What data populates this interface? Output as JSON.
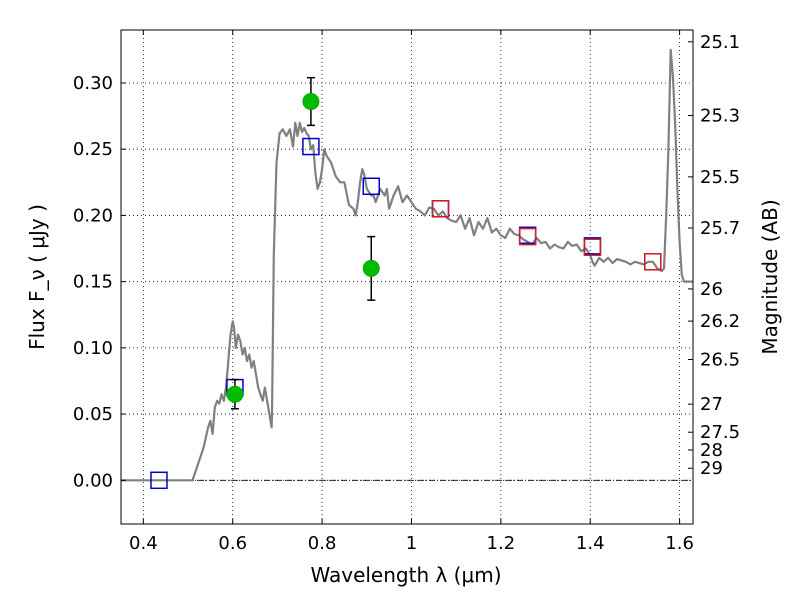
{
  "chart_data": {
    "type": "scatter",
    "xlabel": "Wavelength  λ (μm)",
    "ylabel": "Flux  F_ν  ( μJy )",
    "y2label": "Magnitude (AB)",
    "xlim": [
      0.35,
      1.63
    ],
    "ylim": [
      -0.033,
      0.34
    ],
    "x_ticks": [
      0.4,
      0.6,
      0.8,
      1.0,
      1.2,
      1.4,
      1.6
    ],
    "x_tick_labels": [
      "0.4",
      "0.6",
      "0.8",
      "1",
      "1.2",
      "1.4",
      "1.6"
    ],
    "y_ticks": [
      0.0,
      0.05,
      0.1,
      0.15,
      0.2,
      0.25,
      0.3
    ],
    "y_tick_labels": [
      "0.00",
      "0.05",
      "0.10",
      "0.15",
      "0.20",
      "0.25",
      "0.30"
    ],
    "mag_ticks": [
      {
        "label": "25.1",
        "flux": 0.3311
      },
      {
        "label": "25.3",
        "flux": 0.2754
      },
      {
        "label": "25.5",
        "flux": 0.2291
      },
      {
        "label": "25.7",
        "flux": 0.1905
      },
      {
        "label": "26",
        "flux": 0.1445
      },
      {
        "label": "26.2",
        "flux": 0.1202
      },
      {
        "label": "26.5",
        "flux": 0.0912
      },
      {
        "label": "27",
        "flux": 0.0575
      },
      {
        "label": "27.5",
        "flux": 0.0363
      },
      {
        "label": "28",
        "flux": 0.0229
      },
      {
        "label": "29",
        "flux": 0.0091
      }
    ],
    "grid": true,
    "legend": "none",
    "zero_line": true,
    "series": [
      {
        "kind": "line",
        "color": "#808080",
        "x": [
          0.35,
          0.51,
          0.52,
          0.535,
          0.545,
          0.55,
          0.555,
          0.56,
          0.565,
          0.57,
          0.575,
          0.58,
          0.585,
          0.59,
          0.595,
          0.6,
          0.603,
          0.607,
          0.612,
          0.617,
          0.622,
          0.627,
          0.632,
          0.637,
          0.642,
          0.647,
          0.652,
          0.657,
          0.662,
          0.667,
          0.672,
          0.677,
          0.682,
          0.687,
          0.688,
          0.692,
          0.698,
          0.705,
          0.712,
          0.72,
          0.728,
          0.735,
          0.74,
          0.745,
          0.75,
          0.755,
          0.76,
          0.765,
          0.77,
          0.775,
          0.78,
          0.785,
          0.79,
          0.795,
          0.8,
          0.805,
          0.81,
          0.82,
          0.83,
          0.84,
          0.85,
          0.86,
          0.87,
          0.875,
          0.88,
          0.885,
          0.89,
          0.895,
          0.9,
          0.91,
          0.915,
          0.92,
          0.93,
          0.94,
          0.945,
          0.95,
          0.96,
          0.97,
          0.98,
          0.99,
          1.0,
          1.01,
          1.02,
          1.03,
          1.04,
          1.05,
          1.06,
          1.07,
          1.08,
          1.09,
          1.1,
          1.11,
          1.12,
          1.13,
          1.14,
          1.15,
          1.16,
          1.17,
          1.18,
          1.19,
          1.2,
          1.21,
          1.22,
          1.23,
          1.24,
          1.25,
          1.26,
          1.27,
          1.28,
          1.29,
          1.3,
          1.31,
          1.32,
          1.33,
          1.34,
          1.35,
          1.36,
          1.37,
          1.38,
          1.39,
          1.4,
          1.405,
          1.41,
          1.42,
          1.43,
          1.44,
          1.45,
          1.46,
          1.47,
          1.48,
          1.49,
          1.5,
          1.51,
          1.52,
          1.53,
          1.54,
          1.55,
          1.56,
          1.565,
          1.57,
          1.575,
          1.58,
          1.585,
          1.59,
          1.595,
          1.6,
          1.605,
          1.61,
          1.62,
          1.63
        ],
        "y": [
          0.0,
          0.0,
          0.01,
          0.025,
          0.04,
          0.045,
          0.035,
          0.055,
          0.06,
          0.058,
          0.065,
          0.06,
          0.07,
          0.09,
          0.11,
          0.12,
          0.115,
          0.1,
          0.11,
          0.105,
          0.095,
          0.1,
          0.09,
          0.095,
          0.085,
          0.09,
          0.08,
          0.07,
          0.065,
          0.06,
          0.07,
          0.06,
          0.05,
          0.04,
          0.05,
          0.17,
          0.24,
          0.262,
          0.265,
          0.26,
          0.265,
          0.252,
          0.27,
          0.26,
          0.27,
          0.263,
          0.266,
          0.262,
          0.26,
          0.25,
          0.253,
          0.232,
          0.22,
          0.225,
          0.235,
          0.25,
          0.245,
          0.24,
          0.23,
          0.225,
          0.225,
          0.208,
          0.205,
          0.2,
          0.21,
          0.225,
          0.235,
          0.23,
          0.22,
          0.215,
          0.215,
          0.21,
          0.22,
          0.215,
          0.22,
          0.205,
          0.215,
          0.222,
          0.21,
          0.215,
          0.21,
          0.205,
          0.203,
          0.2,
          0.206,
          0.205,
          0.2,
          0.203,
          0.198,
          0.196,
          0.195,
          0.2,
          0.19,
          0.198,
          0.185,
          0.195,
          0.19,
          0.198,
          0.187,
          0.19,
          0.185,
          0.183,
          0.19,
          0.186,
          0.185,
          0.182,
          0.18,
          0.178,
          0.183,
          0.179,
          0.18,
          0.175,
          0.178,
          0.176,
          0.175,
          0.18,
          0.177,
          0.178,
          0.173,
          0.175,
          0.17,
          0.165,
          0.162,
          0.168,
          0.165,
          0.168,
          0.164,
          0.167,
          0.166,
          0.165,
          0.163,
          0.165,
          0.164,
          0.163,
          0.165,
          0.165,
          0.16,
          0.158,
          0.16,
          0.2,
          0.25,
          0.325,
          0.305,
          0.27,
          0.22,
          0.18,
          0.155,
          0.15,
          0.15,
          0.15
        ]
      },
      {
        "kind": "points",
        "marker": "square",
        "edge_color": "#0000cc",
        "fill_color": "none",
        "x": [
          0.435,
          0.605,
          0.775,
          0.91,
          1.065,
          1.26,
          1.405,
          1.54
        ],
        "y": [
          0.0,
          0.07,
          0.252,
          0.222,
          0.205,
          0.185,
          0.177,
          0.165
        ]
      },
      {
        "kind": "points",
        "marker": "square",
        "edge_color": "#d02020",
        "fill_color": "none",
        "x": [
          1.065,
          1.26,
          1.405,
          1.54
        ],
        "y": [
          0.205,
          0.184,
          0.176,
          0.165
        ]
      },
      {
        "kind": "points",
        "marker": "circle",
        "edge_color": "#00aa00",
        "fill_color": "#00bb00",
        "x": [
          0.605,
          0.775,
          0.91
        ],
        "y": [
          0.065,
          0.286,
          0.16
        ],
        "yerr": [
          0.011,
          0.018,
          0.024
        ]
      }
    ]
  }
}
